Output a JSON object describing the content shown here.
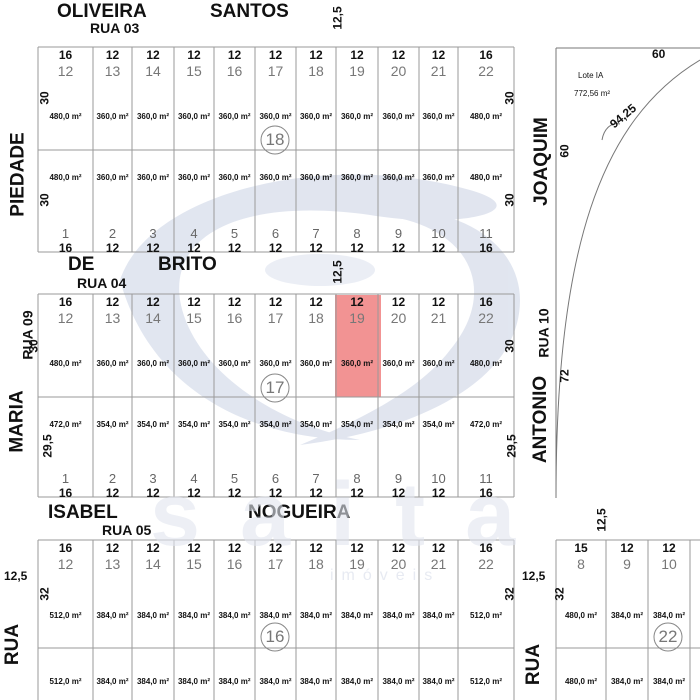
{
  "streets": {
    "oliveira": "OLIVEIRA",
    "santos": "SANTOS",
    "rua03": "RUA   03",
    "de": "DE",
    "brito": "BRITO",
    "rua04": "RUA   04",
    "isabel": "ISABEL",
    "nogueira": "NOGUEIRA",
    "rua05": "RUA   05",
    "piedade": "PIEDADE",
    "maria": "MARIA",
    "rua09": "RUA  09",
    "rua_left_bottom": "RUA",
    "joaquim": "JOAQUIM",
    "antonio": "ANTONIO",
    "rua10": "RUA   10",
    "rua_mid_bottom": "RUA"
  },
  "dims": {
    "top_125": "12,5",
    "mid_125": "12,5",
    "low_125": "12,5",
    "left_125": "12,5",
    "right_125": "12,5",
    "curve_60_top": "60",
    "curve_60_side": "60",
    "curve_arc": "94,25",
    "curve_72": "72"
  },
  "lote_ia": {
    "label": "Lote IA",
    "area": "772,56 m²"
  },
  "block18": {
    "number": "18",
    "top_widths": [
      "16",
      "12",
      "12",
      "12",
      "12",
      "12",
      "12",
      "12",
      "12",
      "12",
      "16"
    ],
    "top_lots": [
      "12",
      "13",
      "14",
      "15",
      "16",
      "17",
      "18",
      "19",
      "20",
      "21",
      "22"
    ],
    "top_areas": [
      "480,0 m²",
      "360,0 m²",
      "360,0 m²",
      "360,0 m²",
      "360,0 m²",
      "360,0 m²",
      "360,0 m²",
      "360,0 m²",
      "360,0 m²",
      "360,0 m²",
      "480,0 m²"
    ],
    "bottom_areas": [
      "480,0 m²",
      "360,0 m²",
      "360,0 m²",
      "360,0 m²",
      "360,0 m²",
      "360,0 m²",
      "360,0 m²",
      "360,0 m²",
      "360,0 m²",
      "360,0 m²",
      "480,0 m²"
    ],
    "bottom_lots": [
      "1",
      "2",
      "3",
      "4",
      "5",
      "6",
      "7",
      "8",
      "9",
      "10",
      "11"
    ],
    "bottom_widths": [
      "16",
      "12",
      "12",
      "12",
      "12",
      "12",
      "12",
      "12",
      "12",
      "12",
      "16"
    ],
    "depth_left_top": "30",
    "depth_left_bottom": "30",
    "depth_right_top": "30",
    "depth_right_bottom": "30"
  },
  "block17": {
    "number": "17",
    "top_widths": [
      "16",
      "12",
      "12",
      "12",
      "12",
      "12",
      "12",
      "12",
      "12",
      "12",
      "16"
    ],
    "top_lots": [
      "12",
      "13",
      "14",
      "15",
      "16",
      "17",
      "18",
      "19",
      "20",
      "21",
      "22"
    ],
    "top_areas": [
      "480,0 m²",
      "360,0 m²",
      "360,0 m²",
      "360,0 m²",
      "360,0 m²",
      "360,0 m²",
      "360,0 m²",
      "360,0 m²",
      "360,0 m²",
      "360,0 m²",
      "480,0 m²"
    ],
    "bottom_areas": [
      "472,0 m²",
      "354,0 m²",
      "354,0 m²",
      "354,0 m²",
      "354,0 m²",
      "354,0 m²",
      "354,0 m²",
      "354,0 m²",
      "354,0 m²",
      "354,0 m²",
      "472,0 m²"
    ],
    "bottom_lots": [
      "1",
      "2",
      "3",
      "4",
      "5",
      "6",
      "7",
      "8",
      "9",
      "10",
      "11"
    ],
    "bottom_widths": [
      "16",
      "12",
      "12",
      "12",
      "12",
      "12",
      "12",
      "12",
      "12",
      "12",
      "16"
    ],
    "depth_left_top": "30",
    "depth_left_bottom": "29,5",
    "depth_right_top": "30",
    "depth_right_bottom": "29,5",
    "highlight_color": "#f08080"
  },
  "block16": {
    "number": "16",
    "top_widths": [
      "16",
      "12",
      "12",
      "12",
      "12",
      "12",
      "12",
      "12",
      "12",
      "12",
      "16"
    ],
    "top_lots": [
      "12",
      "13",
      "14",
      "15",
      "16",
      "17",
      "18",
      "19",
      "20",
      "21",
      "22"
    ],
    "top_areas": [
      "512,0 m²",
      "384,0 m²",
      "384,0 m²",
      "384,0 m²",
      "384,0 m²",
      "384,0 m²",
      "384,0 m²",
      "384,0 m²",
      "384,0 m²",
      "384,0 m²",
      "512,0 m²"
    ],
    "bottom_areas": [
      "512,0 m²",
      "384,0 m²",
      "384,0 m²",
      "384,0 m²",
      "384,0 m²",
      "384,0 m²",
      "384,0 m²",
      "384,0 m²",
      "384,0 m²",
      "384,0 m²",
      "512,0 m²"
    ],
    "depth_left": "32",
    "depth_right": "32"
  },
  "block22": {
    "number": "22",
    "top_widths": [
      "15",
      "12",
      "12"
    ],
    "top_lots": [
      "8",
      "9",
      "10"
    ],
    "top_areas": [
      "480,0 m²",
      "384,0 m²",
      "384,0 m²"
    ],
    "bottom_areas": [
      "480,0 m²",
      "384,0 m²",
      "384,0 m²"
    ],
    "depth_left": "32"
  },
  "watermark": {
    "brand": "saita",
    "sub": "imóveis"
  },
  "colors": {
    "line": "#9a9a9a",
    "swoosh": "#c9d1e3",
    "highlight": "#f08080"
  }
}
